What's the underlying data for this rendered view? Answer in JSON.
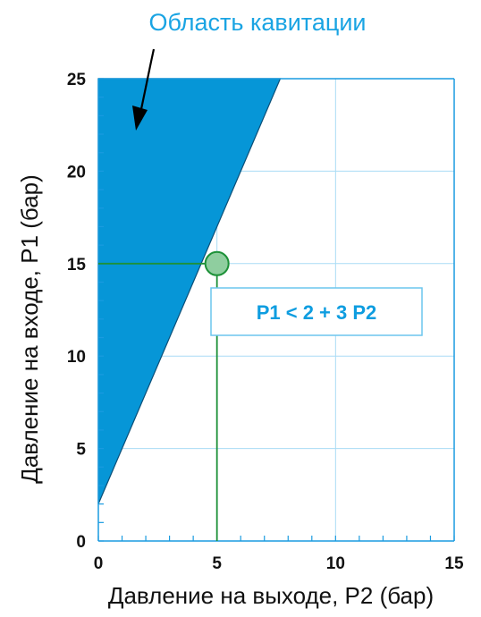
{
  "chart_data": {
    "type": "area",
    "title": "",
    "xlabel": "Давление на выходе, P2 (бар)",
    "ylabel": "Давление на входе, P1 (бар)",
    "xlim": [
      0,
      15
    ],
    "ylim": [
      0,
      25
    ],
    "x_ticks": [
      0,
      5,
      10,
      15
    ],
    "y_ticks": [
      0,
      5,
      10,
      15,
      20,
      25
    ],
    "grid": true,
    "cavitation_region": {
      "label": "Область кавитации",
      "boundary": {
        "intercept": 2,
        "slope": 3
      },
      "polygon": [
        [
          0,
          2
        ],
        [
          7.67,
          25
        ],
        [
          0,
          25
        ]
      ]
    },
    "marked_point": {
      "x": 5,
      "y": 15
    },
    "formula": "P1 < 2 + 3 P2"
  },
  "colors": {
    "region_fill": "#0696d7",
    "grid": "#a9dcf5",
    "axis": "#1a9be0",
    "annotation_text": "#1aa4e3",
    "marker_line": "#1d9138",
    "marker_fill": "#8fce9f",
    "formula_text": "#0e9de0",
    "formula_border": "#6cc6ee"
  },
  "icons": {
    "pointer": "arrow-icon",
    "point": "circle-marker-icon"
  }
}
